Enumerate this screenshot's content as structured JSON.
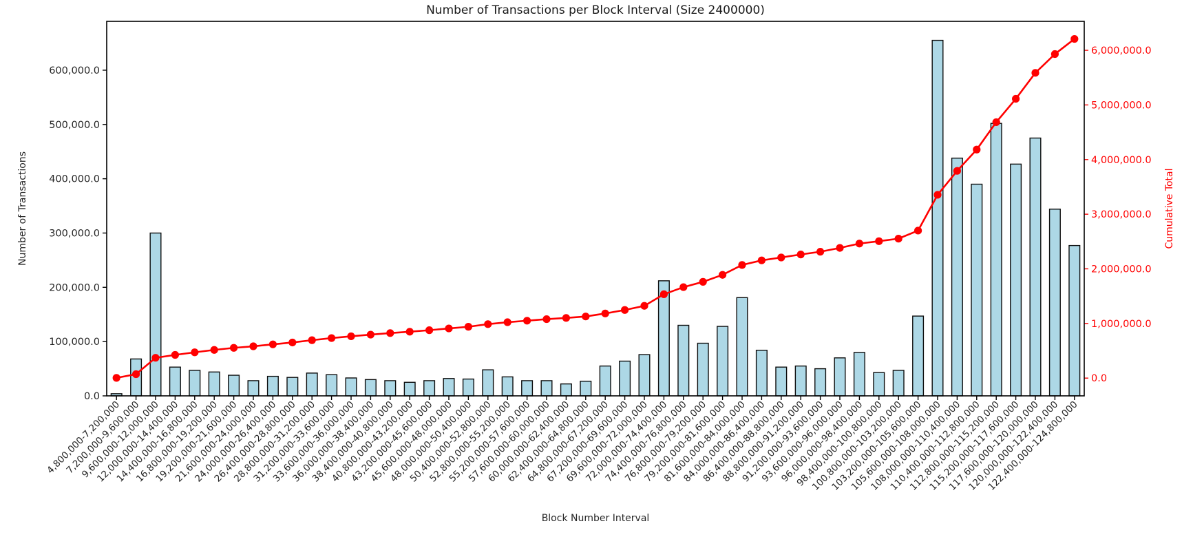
{
  "chart_data": {
    "type": "bar+line",
    "title": "Number of Transactions per Block Interval (Size 2400000)",
    "xlabel": "Block Number Interval",
    "background": "#ffffff",
    "grid": false,
    "legend": "none",
    "categories": [
      "4,800,000-7,200,000",
      "7,200,000-9,600,000",
      "9,600,000-12,000,000",
      "12,000,000-14,400,000",
      "14,400,000-16,800,000",
      "16,800,000-19,200,000",
      "19,200,000-21,600,000",
      "21,600,000-24,000,000",
      "24,000,000-26,400,000",
      "26,400,000-28,800,000",
      "28,800,000-31,200,000",
      "31,200,000-33,600,000",
      "33,600,000-36,000,000",
      "36,000,000-38,400,000",
      "38,400,000-40,800,000",
      "40,800,000-43,200,000",
      "43,200,000-45,600,000",
      "45,600,000-48,000,000",
      "48,000,000-50,400,000",
      "50,400,000-52,800,000",
      "52,800,000-55,200,000",
      "55,200,000-57,600,000",
      "57,600,000-60,000,000",
      "60,000,000-62,400,000",
      "62,400,000-64,800,000",
      "64,800,000-67,200,000",
      "67,200,000-69,600,000",
      "69,600,000-72,000,000",
      "72,000,000-74,400,000",
      "74,400,000-76,800,000",
      "76,800,000-79,200,000",
      "79,200,000-81,600,000",
      "81,600,000-84,000,000",
      "84,000,000-86,400,000",
      "86,400,000-88,800,000",
      "88,800,000-91,200,000",
      "91,200,000-93,600,000",
      "93,600,000-96,000,000",
      "96,000,000-98,400,000",
      "98,400,000-100,800,000",
      "100,800,000-103,200,000",
      "103,200,000-105,600,000",
      "105,600,000-108,000,000",
      "108,000,000-110,400,000",
      "110,400,000-112,800,000",
      "112,800,000-115,200,000",
      "115,200,000-117,600,000",
      "117,600,000-120,000,000",
      "120,000,000-122,400,000",
      "122,400,000-124,800,000"
    ],
    "series": [
      {
        "name": "Number of Transactions",
        "type": "bar",
        "axis": "left",
        "color": "#ADD8E6",
        "edge_color": "#0d0d0d",
        "values": [
          4000,
          68000,
          300000,
          53000,
          47000,
          44000,
          38000,
          28000,
          36000,
          34000,
          42000,
          39000,
          33000,
          30000,
          28000,
          25000,
          28000,
          32000,
          31000,
          48000,
          35000,
          28000,
          28000,
          22000,
          27000,
          55000,
          64000,
          76000,
          212000,
          130000,
          97000,
          128000,
          181000,
          84000,
          53000,
          55000,
          50000,
          70000,
          80000,
          43000,
          47000,
          147000,
          655000,
          438000,
          390000,
          502000,
          427000,
          475000,
          344000,
          277000
        ]
      },
      {
        "name": "Cumulative Total",
        "type": "line",
        "axis": "right",
        "color": "#ff0000",
        "marker": "circle",
        "values": [
          4000,
          72000,
          372000,
          425000,
          472000,
          516000,
          554000,
          582000,
          618000,
          652000,
          694000,
          733000,
          766000,
          796000,
          824000,
          849000,
          877000,
          909000,
          940000,
          988000,
          1023000,
          1051000,
          1079000,
          1101000,
          1128000,
          1183000,
          1247000,
          1323000,
          1535000,
          1665000,
          1762000,
          1890000,
          2071000,
          2155000,
          2208000,
          2263000,
          2313000,
          2383000,
          2463000,
          2506000,
          2553000,
          2700000,
          3355000,
          3793000,
          4183000,
          4685000,
          5112000,
          5587000,
          5931000,
          6208000
        ]
      }
    ],
    "left_axis": {
      "label": "Number of Transactions",
      "color": "#262626",
      "lim": [
        0,
        690000
      ],
      "ticks": [
        {
          "value": 0,
          "label": "0.0"
        },
        {
          "value": 100000,
          "label": "100,000.0"
        },
        {
          "value": 200000,
          "label": "200,000.0"
        },
        {
          "value": 300000,
          "label": "300,000.0"
        },
        {
          "value": 400000,
          "label": "400,000.0"
        },
        {
          "value": 500000,
          "label": "500,000.0"
        },
        {
          "value": 600000,
          "label": "600,000.0"
        }
      ]
    },
    "right_axis": {
      "label": "Cumulative Total",
      "color": "#ff0000",
      "lim": [
        -325000,
        6530000
      ],
      "ticks": [
        {
          "value": 0,
          "label": "0.0"
        },
        {
          "value": 1000000,
          "label": "1,000,000.0"
        },
        {
          "value": 2000000,
          "label": "2,000,000.0"
        },
        {
          "value": 3000000,
          "label": "3,000,000.0"
        },
        {
          "value": 4000000,
          "label": "4,000,000.0"
        },
        {
          "value": 5000000,
          "label": "5,000,000.0"
        },
        {
          "value": 6000000,
          "label": "6,000,000.0"
        }
      ]
    },
    "x_axis": {
      "label": "Block Number Interval",
      "tick_rotation": 45
    }
  }
}
